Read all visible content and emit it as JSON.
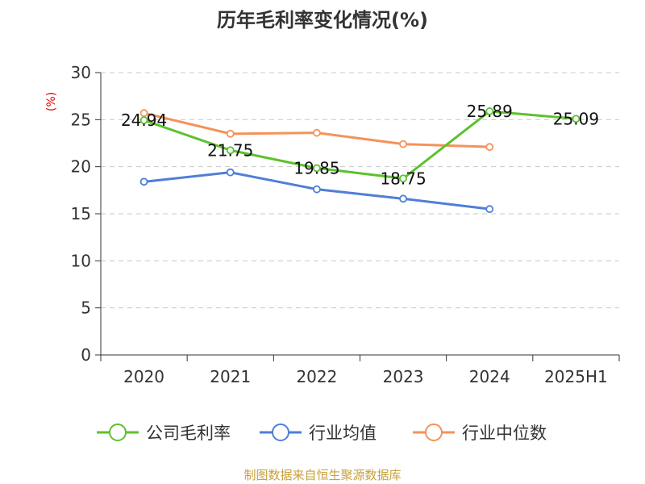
{
  "chart_data": {
    "type": "line",
    "title": "历年毛利率变化情况(%)",
    "ylabel": "(%)",
    "categories": [
      "2020",
      "2021",
      "2022",
      "2023",
      "2024",
      "2025H1"
    ],
    "ylim": [
      0,
      30
    ],
    "yticks": [
      0,
      5,
      10,
      15,
      20,
      25,
      30
    ],
    "grid": true,
    "legend_position": "bottom",
    "series": [
      {
        "name": "公司毛利率",
        "color": "#5cc22d",
        "values": [
          24.94,
          21.75,
          19.85,
          18.75,
          25.89,
          25.09
        ],
        "labels": [
          "24.94",
          "21.75",
          "19.85",
          "18.75",
          "25.89",
          "25.09"
        ]
      },
      {
        "name": "行业均值",
        "color": "#4f7fd6",
        "values": [
          18.4,
          19.4,
          17.6,
          16.6,
          15.5,
          null
        ]
      },
      {
        "name": "行业中位数",
        "color": "#f4925a",
        "values": [
          25.7,
          23.5,
          23.6,
          22.4,
          22.1,
          null
        ]
      }
    ]
  },
  "source": "制图数据来自恒生聚源数据库"
}
